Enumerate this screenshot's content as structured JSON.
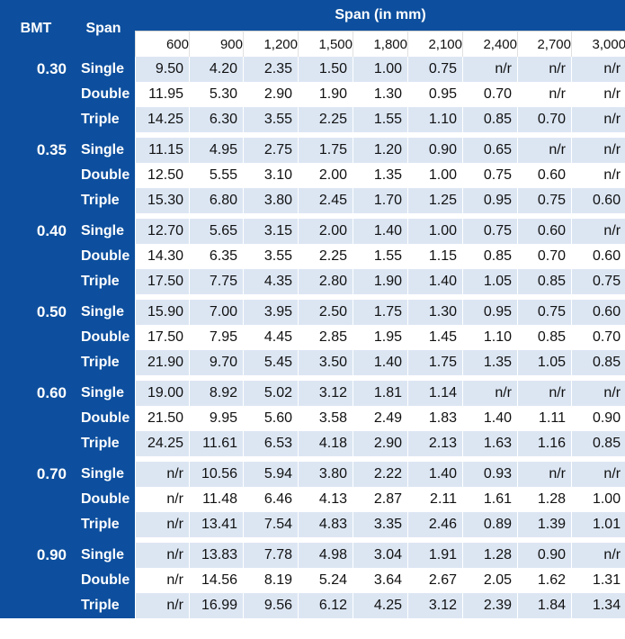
{
  "header": {
    "bmt_label": "BMT",
    "span_label": "Span",
    "span_mm_label": "Span (in mm)"
  },
  "spans": [
    "600",
    "900",
    "1,200",
    "1,500",
    "1,800",
    "2,100",
    "2,400",
    "2,700",
    "3,000"
  ],
  "groups": [
    {
      "bmt": "0.30",
      "rows": [
        {
          "type": "Single",
          "values": [
            "9.50",
            "4.20",
            "2.35",
            "1.50",
            "1.00",
            "0.75",
            "n/r",
            "n/r",
            "n/r"
          ]
        },
        {
          "type": "Double",
          "values": [
            "11.95",
            "5.30",
            "2.90",
            "1.90",
            "1.30",
            "0.95",
            "0.70",
            "n/r",
            "n/r"
          ]
        },
        {
          "type": "Triple",
          "values": [
            "14.25",
            "6.30",
            "3.55",
            "2.25",
            "1.55",
            "1.10",
            "0.85",
            "0.70",
            "n/r"
          ]
        }
      ]
    },
    {
      "bmt": "0.35",
      "rows": [
        {
          "type": "Single",
          "values": [
            "11.15",
            "4.95",
            "2.75",
            "1.75",
            "1.20",
            "0.90",
            "0.65",
            "n/r",
            "n/r"
          ]
        },
        {
          "type": "Double",
          "values": [
            "12.50",
            "5.55",
            "3.10",
            "2.00",
            "1.35",
            "1.00",
            "0.75",
            "0.60",
            "n/r"
          ]
        },
        {
          "type": "Triple",
          "values": [
            "15.30",
            "6.80",
            "3.80",
            "2.45",
            "1.70",
            "1.25",
            "0.95",
            "0.75",
            "0.60"
          ]
        }
      ]
    },
    {
      "bmt": "0.40",
      "rows": [
        {
          "type": "Single",
          "values": [
            "12.70",
            "5.65",
            "3.15",
            "2.00",
            "1.40",
            "1.00",
            "0.75",
            "0.60",
            "n/r"
          ]
        },
        {
          "type": "Double",
          "values": [
            "14.30",
            "6.35",
            "3.55",
            "2.25",
            "1.55",
            "1.15",
            "0.85",
            "0.70",
            "0.60"
          ]
        },
        {
          "type": "Triple",
          "values": [
            "17.50",
            "7.75",
            "4.35",
            "2.80",
            "1.90",
            "1.40",
            "1.05",
            "0.85",
            "0.75"
          ]
        }
      ]
    },
    {
      "bmt": "0.50",
      "rows": [
        {
          "type": "Single",
          "values": [
            "15.90",
            "7.00",
            "3.95",
            "2.50",
            "1.75",
            "1.30",
            "0.95",
            "0.75",
            "0.60"
          ]
        },
        {
          "type": "Double",
          "values": [
            "17.50",
            "7.95",
            "4.45",
            "2.85",
            "1.95",
            "1.45",
            "1.10",
            "0.85",
            "0.70"
          ]
        },
        {
          "type": "Triple",
          "values": [
            "21.90",
            "9.70",
            "5.45",
            "3.50",
            "1.40",
            "1.75",
            "1.35",
            "1.05",
            "0.85"
          ]
        }
      ]
    },
    {
      "bmt": "0.60",
      "rows": [
        {
          "type": "Single",
          "values": [
            "19.00",
            "8.92",
            "5.02",
            "3.12",
            "1.81",
            "1.14",
            "n/r",
            "n/r",
            "n/r"
          ]
        },
        {
          "type": "Double",
          "values": [
            "21.50",
            "9.95",
            "5.60",
            "3.58",
            "2.49",
            "1.83",
            "1.40",
            "1.11",
            "0.90"
          ]
        },
        {
          "type": "Triple",
          "values": [
            "24.25",
            "11.61",
            "6.53",
            "4.18",
            "2.90",
            "2.13",
            "1.63",
            "1.16",
            "0.85"
          ]
        }
      ]
    },
    {
      "bmt": "0.70",
      "rows": [
        {
          "type": "Single",
          "values": [
            "n/r",
            "10.56",
            "5.94",
            "3.80",
            "2.22",
            "1.40",
            "0.93",
            "n/r",
            "n/r"
          ]
        },
        {
          "type": "Double",
          "values": [
            "n/r",
            "11.48",
            "6.46",
            "4.13",
            "2.87",
            "2.11",
            "1.61",
            "1.28",
            "1.00"
          ]
        },
        {
          "type": "Triple",
          "values": [
            "n/r",
            "13.41",
            "7.54",
            "4.83",
            "3.35",
            "2.46",
            "0.89",
            "1.39",
            "1.01"
          ]
        }
      ]
    },
    {
      "bmt": "0.90",
      "rows": [
        {
          "type": "Single",
          "values": [
            "n/r",
            "13.83",
            "7.78",
            "4.98",
            "3.04",
            "1.91",
            "1.28",
            "0.90",
            "n/r"
          ]
        },
        {
          "type": "Double",
          "values": [
            "n/r",
            "14.56",
            "8.19",
            "5.24",
            "3.64",
            "2.67",
            "2.05",
            "1.62",
            "1.31"
          ]
        },
        {
          "type": "Triple",
          "values": [
            "n/r",
            "16.99",
            "9.56",
            "6.12",
            "4.25",
            "3.12",
            "2.39",
            "1.84",
            "1.34"
          ]
        }
      ]
    }
  ],
  "colors": {
    "header_blue": "#0d4f9e",
    "row_tint": "#dce6f3"
  }
}
